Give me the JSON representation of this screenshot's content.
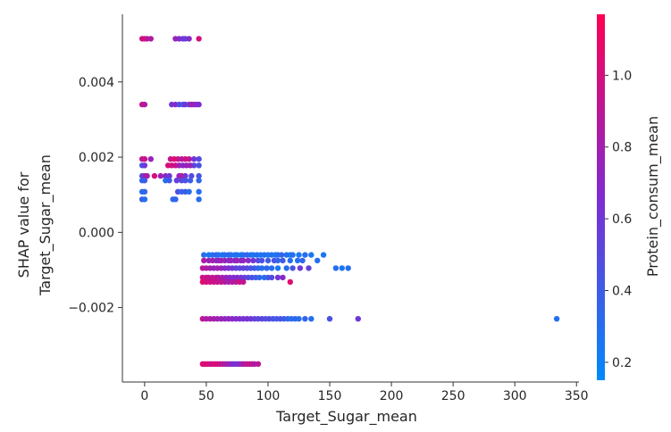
{
  "chart_data": {
    "type": "scatter",
    "title": "",
    "xlabel": "Target_Sugar_mean",
    "ylabel_lines": [
      "SHAP value for",
      "Target_Sugar_mean"
    ],
    "xlim": [
      -18,
      352
    ],
    "ylim": [
      -0.00398,
      0.0058
    ],
    "xticks": [
      0,
      50,
      100,
      150,
      200,
      250,
      300,
      350
    ],
    "xtick_labels": [
      "0",
      "50",
      "100",
      "150",
      "200",
      "250",
      "300",
      "350"
    ],
    "yticks": [
      0.004,
      0.002,
      0.0,
      -0.002
    ],
    "ytick_labels": [
      "0.004",
      "0.002",
      "0.000",
      "−0.002"
    ],
    "grid": false,
    "colorbar": {
      "label": "Protein_consum_mean",
      "range": [
        0.15,
        1.17
      ],
      "ticks": [
        0.2,
        0.4,
        0.6,
        0.8,
        1.0
      ],
      "tick_labels": [
        "0.2",
        "0.4",
        "0.6",
        "0.8",
        "1.0"
      ],
      "color_low": "#008afb",
      "color_mid": "#7f2bd2",
      "color_high": "#ff0052"
    },
    "point_rows": [
      {
        "y": 0.00515,
        "points": [
          [
            -2,
            0.95
          ],
          [
            0,
            1.0
          ],
          [
            2,
            0.9
          ],
          [
            5,
            0.85
          ],
          [
            25,
            0.75
          ],
          [
            28,
            0.7
          ],
          [
            31,
            0.6
          ],
          [
            33,
            0.55
          ],
          [
            36,
            0.7
          ],
          [
            44,
            1.0
          ]
        ]
      },
      {
        "y": 0.0034,
        "points": [
          [
            -2,
            0.95
          ],
          [
            0,
            0.85
          ],
          [
            22,
            0.6
          ],
          [
            25,
            0.7
          ],
          [
            28,
            0.5
          ],
          [
            31,
            0.45
          ],
          [
            33,
            0.6
          ],
          [
            36,
            0.55
          ],
          [
            38,
            0.8
          ],
          [
            40,
            0.75
          ],
          [
            42,
            0.7
          ],
          [
            44,
            0.65
          ]
        ]
      },
      {
        "y": 0.00195,
        "points": [
          [
            -2,
            0.9
          ],
          [
            0,
            0.95
          ],
          [
            5,
            0.75
          ],
          [
            21,
            0.95
          ],
          [
            24,
            1.05
          ],
          [
            27,
            0.95
          ],
          [
            30,
            0.85
          ],
          [
            33,
            1.0
          ],
          [
            36,
            0.9
          ],
          [
            40,
            0.6
          ],
          [
            44,
            0.5
          ]
        ]
      },
      {
        "y": 0.00178,
        "points": [
          [
            -2,
            0.4
          ],
          [
            0,
            0.6
          ],
          [
            19,
            1.0
          ],
          [
            22,
            1.0
          ],
          [
            25,
            0.95
          ],
          [
            28,
            0.8
          ],
          [
            31,
            0.7
          ],
          [
            34,
            0.75
          ],
          [
            37,
            0.8
          ],
          [
            40,
            0.55
          ],
          [
            44,
            0.45
          ]
        ]
      },
      {
        "y": 0.0015,
        "points": [
          [
            -2,
            0.5
          ],
          [
            0,
            0.75
          ],
          [
            2,
            0.85
          ],
          [
            8,
            1.0
          ],
          [
            13,
            0.8
          ],
          [
            17,
            0.7
          ],
          [
            20,
            0.6
          ],
          [
            28,
            0.7
          ],
          [
            30,
            0.9
          ],
          [
            33,
            0.6
          ],
          [
            38,
            0.5
          ],
          [
            44,
            0.45
          ]
        ]
      },
      {
        "y": 0.00138,
        "points": [
          [
            -2,
            0.35
          ],
          [
            0,
            0.4
          ],
          [
            17,
            0.3
          ],
          [
            20,
            0.4
          ],
          [
            26,
            0.55
          ],
          [
            30,
            0.5
          ],
          [
            33,
            0.45
          ],
          [
            37,
            0.4
          ],
          [
            44,
            0.35
          ]
        ]
      },
      {
        "y": 0.00108,
        "points": [
          [
            -2,
            0.3
          ],
          [
            0,
            0.35
          ],
          [
            27,
            0.45
          ],
          [
            30,
            0.35
          ],
          [
            33,
            0.4
          ],
          [
            36,
            0.3
          ],
          [
            44,
            0.3
          ]
        ]
      },
      {
        "y": 0.00088,
        "points": [
          [
            -2,
            0.4
          ],
          [
            0,
            0.3
          ],
          [
            23,
            0.3
          ],
          [
            25,
            0.35
          ],
          [
            44,
            0.3
          ]
        ]
      },
      {
        "y": -0.0006,
        "points": [
          [
            48,
            0.3
          ],
          [
            52,
            0.25
          ],
          [
            55,
            0.3
          ],
          [
            58,
            0.35
          ],
          [
            60,
            0.3
          ],
          [
            63,
            0.25
          ],
          [
            65,
            0.3
          ],
          [
            68,
            0.35
          ],
          [
            70,
            0.3
          ],
          [
            73,
            0.25
          ],
          [
            75,
            0.3
          ],
          [
            78,
            0.25
          ],
          [
            80,
            0.3
          ],
          [
            83,
            0.35
          ],
          [
            86,
            0.3
          ],
          [
            88,
            0.25
          ],
          [
            91,
            0.3
          ],
          [
            94,
            0.25
          ],
          [
            97,
            0.3
          ],
          [
            100,
            0.25
          ],
          [
            103,
            0.3
          ],
          [
            106,
            0.25
          ],
          [
            108,
            0.3
          ],
          [
            111,
            0.35
          ],
          [
            115,
            0.3
          ],
          [
            118,
            0.25
          ],
          [
            120,
            0.3
          ],
          [
            125,
            0.25
          ],
          [
            130,
            0.3
          ],
          [
            135,
            0.25
          ],
          [
            145,
            0.25
          ]
        ]
      },
      {
        "y": -0.00075,
        "points": [
          [
            48,
            0.85
          ],
          [
            52,
            0.75
          ],
          [
            55,
            0.8
          ],
          [
            58,
            0.75
          ],
          [
            60,
            0.7
          ],
          [
            62,
            0.8
          ],
          [
            65,
            0.75
          ],
          [
            68,
            0.7
          ],
          [
            70,
            0.75
          ],
          [
            73,
            0.7
          ],
          [
            75,
            0.8
          ],
          [
            78,
            0.7
          ],
          [
            80,
            0.75
          ],
          [
            84,
            0.7
          ],
          [
            88,
            0.6
          ],
          [
            92,
            0.5
          ],
          [
            95,
            0.45
          ],
          [
            100,
            0.4
          ],
          [
            105,
            0.45
          ],
          [
            108,
            0.35
          ],
          [
            112,
            0.4
          ],
          [
            118,
            0.3
          ],
          [
            124,
            0.3
          ],
          [
            128,
            0.35
          ],
          [
            140,
            0.3
          ]
        ]
      },
      {
        "y": -0.00095,
        "points": [
          [
            47,
            0.9
          ],
          [
            50,
            0.85
          ],
          [
            53,
            0.8
          ],
          [
            56,
            0.75
          ],
          [
            59,
            0.8
          ],
          [
            62,
            0.75
          ],
          [
            65,
            0.7
          ],
          [
            68,
            0.65
          ],
          [
            71,
            0.6
          ],
          [
            74,
            0.55
          ],
          [
            77,
            0.5
          ],
          [
            80,
            0.55
          ],
          [
            83,
            0.5
          ],
          [
            86,
            0.45
          ],
          [
            89,
            0.4
          ],
          [
            92,
            0.35
          ],
          [
            95,
            0.3
          ],
          [
            99,
            0.35
          ],
          [
            103,
            0.3
          ],
          [
            108,
            0.25
          ],
          [
            115,
            0.3
          ],
          [
            120,
            0.45
          ],
          [
            126,
            0.6
          ],
          [
            133,
            0.55
          ],
          [
            155,
            0.3
          ],
          [
            160,
            0.25
          ],
          [
            165,
            0.3
          ]
        ]
      },
      {
        "y": -0.0012,
        "points": [
          [
            47,
            0.95
          ],
          [
            50,
            1.0
          ],
          [
            52,
            0.9
          ],
          [
            55,
            0.95
          ],
          [
            58,
            0.85
          ],
          [
            60,
            0.9
          ],
          [
            63,
            0.8
          ],
          [
            66,
            0.75
          ],
          [
            69,
            0.7
          ],
          [
            72,
            0.65
          ],
          [
            75,
            0.7
          ],
          [
            78,
            0.6
          ],
          [
            81,
            0.55
          ],
          [
            84,
            0.5
          ],
          [
            87,
            0.45
          ],
          [
            90,
            0.4
          ],
          [
            93,
            0.35
          ],
          [
            97,
            0.3
          ],
          [
            100,
            0.4
          ],
          [
            103,
            0.5
          ],
          [
            108,
            0.6
          ],
          [
            112,
            0.7
          ]
        ]
      },
      {
        "y": -0.00132,
        "points": [
          [
            47,
            1.05
          ],
          [
            50,
            1.0
          ],
          [
            53,
            0.95
          ],
          [
            56,
            1.0
          ],
          [
            59,
            0.9
          ],
          [
            62,
            0.95
          ],
          [
            65,
            0.85
          ],
          [
            68,
            0.8
          ],
          [
            71,
            0.9
          ],
          [
            74,
            0.85
          ],
          [
            77,
            1.0
          ],
          [
            80,
            0.9
          ],
          [
            118,
            1.05
          ]
        ]
      },
      {
        "y": -0.0023,
        "points": [
          [
            47,
            0.9
          ],
          [
            50,
            0.85
          ],
          [
            53,
            0.8
          ],
          [
            56,
            0.85
          ],
          [
            59,
            0.75
          ],
          [
            62,
            0.8
          ],
          [
            65,
            0.7
          ],
          [
            68,
            0.75
          ],
          [
            71,
            0.7
          ],
          [
            74,
            0.65
          ],
          [
            77,
            0.7
          ],
          [
            80,
            0.6
          ],
          [
            83,
            0.65
          ],
          [
            86,
            0.6
          ],
          [
            89,
            0.55
          ],
          [
            92,
            0.5
          ],
          [
            95,
            0.55
          ],
          [
            98,
            0.45
          ],
          [
            101,
            0.5
          ],
          [
            104,
            0.45
          ],
          [
            107,
            0.4
          ],
          [
            110,
            0.45
          ],
          [
            113,
            0.4
          ],
          [
            116,
            0.35
          ],
          [
            119,
            0.3
          ],
          [
            122,
            0.35
          ],
          [
            125,
            0.3
          ],
          [
            130,
            0.35
          ],
          [
            135,
            0.3
          ],
          [
            150,
            0.45
          ],
          [
            173,
            0.6
          ],
          [
            334,
            0.3
          ]
        ]
      },
      {
        "y": -0.0035,
        "points": [
          [
            47,
            1.05
          ],
          [
            49,
            1.0
          ],
          [
            51,
            1.05
          ],
          [
            53,
            0.95
          ],
          [
            55,
            1.0
          ],
          [
            57,
            1.05
          ],
          [
            59,
            0.95
          ],
          [
            61,
            1.0
          ],
          [
            63,
            0.9
          ],
          [
            65,
            0.85
          ],
          [
            67,
            0.8
          ],
          [
            69,
            0.75
          ],
          [
            71,
            0.7
          ],
          [
            73,
            0.65
          ],
          [
            75,
            0.6
          ],
          [
            77,
            0.7
          ],
          [
            79,
            0.8
          ],
          [
            81,
            0.85
          ],
          [
            83,
            0.9
          ],
          [
            85,
            0.95
          ],
          [
            87,
            0.9
          ],
          [
            89,
            0.85
          ],
          [
            92,
            0.9
          ]
        ]
      }
    ]
  }
}
